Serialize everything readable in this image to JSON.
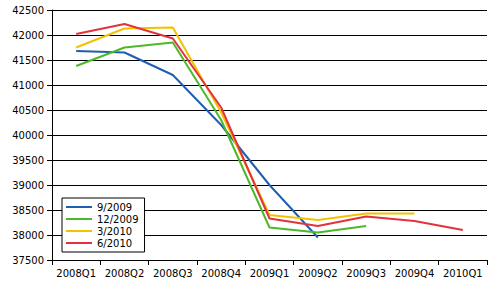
{
  "chart_data": {
    "type": "line",
    "categories": [
      "2008Q1",
      "2008Q2",
      "2008Q3",
      "2008Q4",
      "2009Q1",
      "2009Q2",
      "2009Q3",
      "2009Q4",
      "2010Q1"
    ],
    "series": [
      {
        "name": "9/2009",
        "color": "#1f5fb0",
        "values": [
          41680,
          41650,
          41200,
          40200,
          39000,
          37950,
          null,
          null,
          null
        ]
      },
      {
        "name": "12/2009",
        "color": "#4cb82a",
        "values": [
          41380,
          41750,
          41850,
          40300,
          38150,
          38050,
          38180,
          null,
          null
        ]
      },
      {
        "name": "3/2010",
        "color": "#f2c200",
        "values": [
          41750,
          42130,
          42150,
          40450,
          38400,
          38300,
          38430,
          38430,
          null
        ]
      },
      {
        "name": "6/2010",
        "color": "#e3323b",
        "values": [
          42020,
          42220,
          41930,
          40550,
          38330,
          38180,
          38370,
          38280,
          38100
        ]
      }
    ],
    "ylim": [
      37500,
      42500
    ],
    "yticks": [
      37500,
      38000,
      38500,
      39000,
      39500,
      40000,
      40500,
      41000,
      41500,
      42000,
      42500
    ],
    "grid": true,
    "legend": "lower left"
  }
}
